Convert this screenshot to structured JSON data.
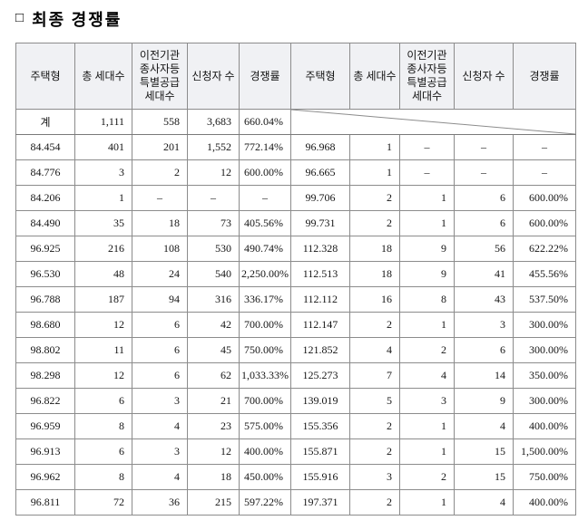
{
  "header": {
    "bullet": "□",
    "title": "최종 경쟁률"
  },
  "table": {
    "columns": {
      "type": "주택형",
      "total": "총 세대수",
      "special": "이전기관\n종사자등\n특별공급\n세대수",
      "applicants": "신청자 수",
      "rate": "경쟁률"
    },
    "total": {
      "label": "계",
      "total": "1,111",
      "special": "558",
      "applicants": "3,683",
      "rate": "660.04%"
    },
    "rows": [
      {
        "left": {
          "type": "84.454",
          "total": "401",
          "special": "201",
          "applicants": "1,552",
          "rate": "772.14%"
        },
        "right": {
          "type": "96.968",
          "total": "1",
          "special": "–",
          "applicants": "–",
          "rate": "–"
        }
      },
      {
        "left": {
          "type": "84.776",
          "total": "3",
          "special": "2",
          "applicants": "12",
          "rate": "600.00%"
        },
        "right": {
          "type": "96.665",
          "total": "1",
          "special": "–",
          "applicants": "–",
          "rate": "–"
        }
      },
      {
        "left": {
          "type": "84.206",
          "total": "1",
          "special": "–",
          "applicants": "–",
          "rate": "–"
        },
        "right": {
          "type": "99.706",
          "total": "2",
          "special": "1",
          "applicants": "6",
          "rate": "600.00%"
        }
      },
      {
        "left": {
          "type": "84.490",
          "total": "35",
          "special": "18",
          "applicants": "73",
          "rate": "405.56%"
        },
        "right": {
          "type": "99.731",
          "total": "2",
          "special": "1",
          "applicants": "6",
          "rate": "600.00%"
        }
      },
      {
        "left": {
          "type": "96.925",
          "total": "216",
          "special": "108",
          "applicants": "530",
          "rate": "490.74%"
        },
        "right": {
          "type": "112.328",
          "total": "18",
          "special": "9",
          "applicants": "56",
          "rate": "622.22%"
        }
      },
      {
        "left": {
          "type": "96.530",
          "total": "48",
          "special": "24",
          "applicants": "540",
          "rate": "2,250.00%"
        },
        "right": {
          "type": "112.513",
          "total": "18",
          "special": "9",
          "applicants": "41",
          "rate": "455.56%"
        }
      },
      {
        "left": {
          "type": "96.788",
          "total": "187",
          "special": "94",
          "applicants": "316",
          "rate": "336.17%"
        },
        "right": {
          "type": "112.112",
          "total": "16",
          "special": "8",
          "applicants": "43",
          "rate": "537.50%"
        }
      },
      {
        "left": {
          "type": "98.680",
          "total": "12",
          "special": "6",
          "applicants": "42",
          "rate": "700.00%"
        },
        "right": {
          "type": "112.147",
          "total": "2",
          "special": "1",
          "applicants": "3",
          "rate": "300.00%"
        }
      },
      {
        "left": {
          "type": "98.802",
          "total": "11",
          "special": "6",
          "applicants": "45",
          "rate": "750.00%"
        },
        "right": {
          "type": "121.852",
          "total": "4",
          "special": "2",
          "applicants": "6",
          "rate": "300.00%"
        }
      },
      {
        "left": {
          "type": "98.298",
          "total": "12",
          "special": "6",
          "applicants": "62",
          "rate": "1,033.33%"
        },
        "right": {
          "type": "125.273",
          "total": "7",
          "special": "4",
          "applicants": "14",
          "rate": "350.00%"
        }
      },
      {
        "left": {
          "type": "96.822",
          "total": "6",
          "special": "3",
          "applicants": "21",
          "rate": "700.00%"
        },
        "right": {
          "type": "139.019",
          "total": "5",
          "special": "3",
          "applicants": "9",
          "rate": "300.00%"
        }
      },
      {
        "left": {
          "type": "96.959",
          "total": "8",
          "special": "4",
          "applicants": "23",
          "rate": "575.00%"
        },
        "right": {
          "type": "155.356",
          "total": "2",
          "special": "1",
          "applicants": "4",
          "rate": "400.00%"
        }
      },
      {
        "left": {
          "type": "96.913",
          "total": "6",
          "special": "3",
          "applicants": "12",
          "rate": "400.00%"
        },
        "right": {
          "type": "155.871",
          "total": "2",
          "special": "1",
          "applicants": "15",
          "rate": "1,500.00%"
        }
      },
      {
        "left": {
          "type": "96.962",
          "total": "8",
          "special": "4",
          "applicants": "18",
          "rate": "450.00%"
        },
        "right": {
          "type": "155.916",
          "total": "3",
          "special": "2",
          "applicants": "15",
          "rate": "750.00%"
        }
      },
      {
        "left": {
          "type": "96.811",
          "total": "72",
          "special": "36",
          "applicants": "215",
          "rate": "597.22%"
        },
        "right": {
          "type": "197.371",
          "total": "2",
          "special": "1",
          "applicants": "4",
          "rate": "400.00%"
        }
      }
    ]
  }
}
